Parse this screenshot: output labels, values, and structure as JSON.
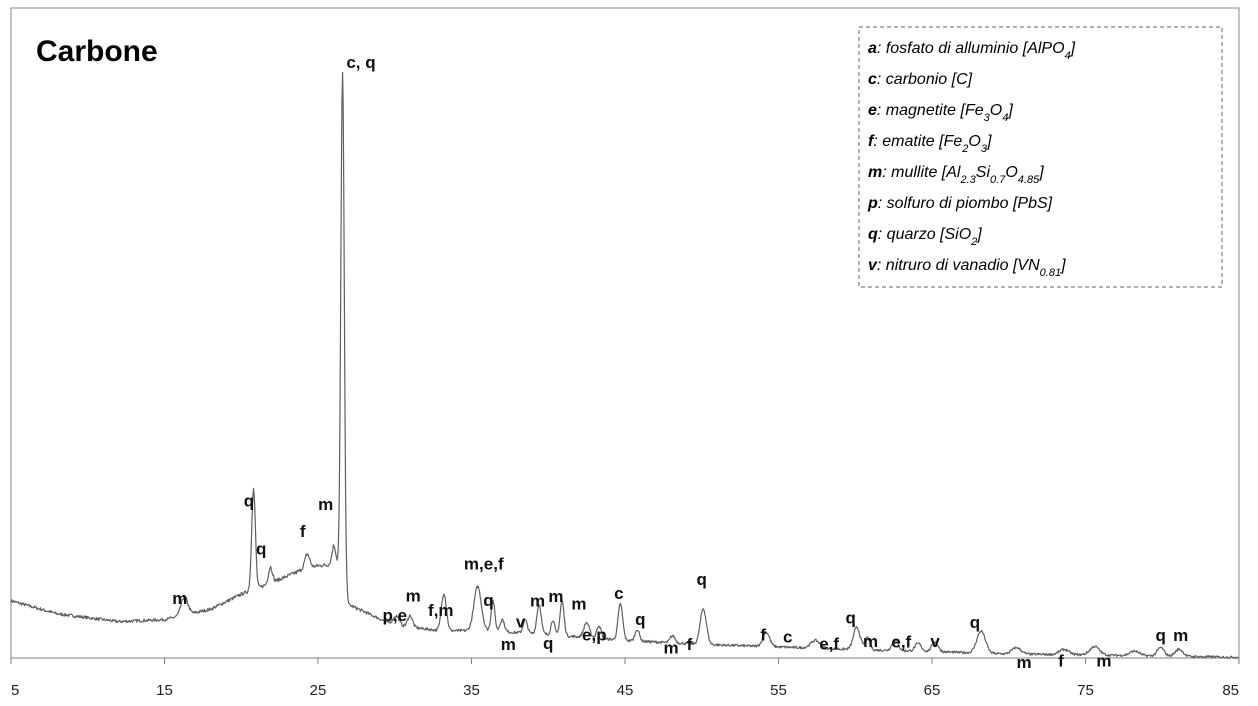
{
  "chart_data": {
    "type": "line",
    "title": "Carbone",
    "xlim": [
      5,
      85
    ],
    "x_ticks": [
      5,
      15,
      25,
      35,
      45,
      55,
      65,
      75,
      85
    ],
    "ylim": [
      0,
      100
    ],
    "grid": false,
    "legend_position": "top-right",
    "line_color": "#5f5f5f",
    "baseline": [
      [
        5,
        8.8
      ],
      [
        8,
        6.8
      ],
      [
        12,
        5.6
      ],
      [
        15,
        5.9
      ],
      [
        18,
        7.5
      ],
      [
        20,
        9.8
      ],
      [
        22,
        11.6
      ],
      [
        24,
        13.6
      ],
      [
        25,
        14.2
      ],
      [
        26,
        14.4
      ],
      [
        26.6,
        13.0
      ],
      [
        27,
        8.2
      ],
      [
        30,
        5.0
      ],
      [
        33,
        4.2
      ],
      [
        36,
        4.2
      ],
      [
        40,
        3.6
      ],
      [
        45,
        2.7
      ],
      [
        50,
        2.1
      ],
      [
        55,
        1.7
      ],
      [
        60,
        1.3
      ],
      [
        65,
        1.0
      ],
      [
        70,
        0.6
      ],
      [
        75,
        0.5
      ],
      [
        80,
        0.3
      ],
      [
        85,
        0.1
      ]
    ],
    "peaks": [
      {
        "x": 16.3,
        "h": 2.8,
        "w": 0.22
      },
      {
        "x": 20.8,
        "h": 15.5,
        "w": 0.12
      },
      {
        "x": 21.9,
        "h": 2.5,
        "w": 0.13
      },
      {
        "x": 24.3,
        "h": 2.2,
        "w": 0.16
      },
      {
        "x": 26.05,
        "h": 3.0,
        "w": 0.13
      },
      {
        "x": 26.6,
        "h": 77.0,
        "w": 0.11
      },
      {
        "x": 30.1,
        "h": 1.5,
        "w": 0.2
      },
      {
        "x": 31.0,
        "h": 1.8,
        "w": 0.16
      },
      {
        "x": 33.2,
        "h": 5.8,
        "w": 0.16
      },
      {
        "x": 35.4,
        "h": 6.8,
        "w": 0.24
      },
      {
        "x": 36.4,
        "h": 4.7,
        "w": 0.12
      },
      {
        "x": 37.0,
        "h": 1.9,
        "w": 0.14
      },
      {
        "x": 38.5,
        "h": 2.0,
        "w": 0.14
      },
      {
        "x": 39.4,
        "h": 4.6,
        "w": 0.14
      },
      {
        "x": 40.3,
        "h": 2.3,
        "w": 0.12
      },
      {
        "x": 40.9,
        "h": 5.3,
        "w": 0.13
      },
      {
        "x": 42.5,
        "h": 2.3,
        "w": 0.18
      },
      {
        "x": 43.3,
        "h": 2.0,
        "w": 0.14
      },
      {
        "x": 44.7,
        "h": 5.6,
        "w": 0.15
      },
      {
        "x": 45.8,
        "h": 1.8,
        "w": 0.14
      },
      {
        "x": 48.1,
        "h": 1.1,
        "w": 0.16
      },
      {
        "x": 50.1,
        "h": 5.5,
        "w": 0.2
      },
      {
        "x": 54.2,
        "h": 2.2,
        "w": 0.22
      },
      {
        "x": 57.4,
        "h": 1.2,
        "w": 0.3
      },
      {
        "x": 60.1,
        "h": 3.4,
        "w": 0.22
      },
      {
        "x": 60.8,
        "h": 1.8,
        "w": 0.16
      },
      {
        "x": 62.6,
        "h": 1.6,
        "w": 0.2
      },
      {
        "x": 64.1,
        "h": 1.2,
        "w": 0.2
      },
      {
        "x": 65.2,
        "h": 1.5,
        "w": 0.2
      },
      {
        "x": 68.2,
        "h": 3.4,
        "w": 0.28
      },
      {
        "x": 70.5,
        "h": 1.0,
        "w": 0.3
      },
      {
        "x": 73.6,
        "h": 0.8,
        "w": 0.3
      },
      {
        "x": 75.6,
        "h": 1.3,
        "w": 0.3
      },
      {
        "x": 78.2,
        "h": 0.7,
        "w": 0.3
      },
      {
        "x": 79.9,
        "h": 1.3,
        "w": 0.22
      },
      {
        "x": 81.1,
        "h": 1.1,
        "w": 0.25
      }
    ],
    "annotations": [
      {
        "text": "m",
        "x": 16.0,
        "y": 8.3
      },
      {
        "text": "q",
        "x": 20.5,
        "y": 23.3
      },
      {
        "text": "q",
        "x": 21.3,
        "y": 15.9
      },
      {
        "text": "f",
        "x": 24.0,
        "y": 18.6
      },
      {
        "text": "m",
        "x": 25.5,
        "y": 22.8
      },
      {
        "text": "c, q",
        "x": 27.8,
        "y": 90.8
      },
      {
        "text": "p,e",
        "x": 30.0,
        "y": 5.7
      },
      {
        "text": "m",
        "x": 31.2,
        "y": 8.7
      },
      {
        "text": "f,m",
        "x": 33.0,
        "y": 6.5
      },
      {
        "text": "m,e,f",
        "x": 35.8,
        "y": 13.6
      },
      {
        "text": "q",
        "x": 36.1,
        "y": 8.0
      },
      {
        "text": "m",
        "x": 37.4,
        "y": 1.2
      },
      {
        "text": "v",
        "x": 38.2,
        "y": 4.7
      },
      {
        "text": "m",
        "x": 39.3,
        "y": 7.9
      },
      {
        "text": "m",
        "x": 40.5,
        "y": 8.6
      },
      {
        "text": "q",
        "x": 40.0,
        "y": 1.4
      },
      {
        "text": "m",
        "x": 42.0,
        "y": 7.5
      },
      {
        "text": "e,p",
        "x": 43.0,
        "y": 2.7
      },
      {
        "text": "c",
        "x": 44.6,
        "y": 9.1
      },
      {
        "text": "q",
        "x": 46.0,
        "y": 5.1
      },
      {
        "text": "m",
        "x": 48.0,
        "y": 0.7
      },
      {
        "text": "f",
        "x": 49.2,
        "y": 1.2
      },
      {
        "text": "q",
        "x": 50.0,
        "y": 11.2
      },
      {
        "text": "f",
        "x": 54.0,
        "y": 2.7
      },
      {
        "text": "c",
        "x": 55.6,
        "y": 2.4
      },
      {
        "text": "e,f",
        "x": 58.3,
        "y": 1.3
      },
      {
        "text": "q",
        "x": 59.7,
        "y": 5.3
      },
      {
        "text": "m",
        "x": 61.0,
        "y": 1.7
      },
      {
        "text": "e,f",
        "x": 63.0,
        "y": 1.6
      },
      {
        "text": "v",
        "x": 65.2,
        "y": 1.7
      },
      {
        "text": "q",
        "x": 67.8,
        "y": 4.6
      },
      {
        "text": "m",
        "x": 71.0,
        "y": -1.5
      },
      {
        "text": "f",
        "x": 73.4,
        "y": -1.3
      },
      {
        "text": "m",
        "x": 76.2,
        "y": -1.3
      },
      {
        "text": "q",
        "x": 79.9,
        "y": 2.6
      },
      {
        "text": "m",
        "x": 81.2,
        "y": 2.6
      }
    ]
  },
  "legend": {
    "entries": [
      {
        "key": "a",
        "text": ": fosfato di alluminio [AlPO",
        "sub": "4",
        "tail": "]"
      },
      {
        "key": "c",
        "text": ": carbonio [C]",
        "sub": "",
        "tail": ""
      },
      {
        "key": "e",
        "text": ":  magnetite [Fe",
        "sub": "3",
        "mid": "O",
        "sub2": "4",
        "tail": "]"
      },
      {
        "key": "f",
        "text": ":  ematite [Fe",
        "sub": "2",
        "mid": "O",
        "sub2": "3",
        "tail": "]"
      },
      {
        "key": "m",
        "text": ": mullite [Al",
        "sub": "2.3",
        "mid": "Si",
        "sub2": "0.7",
        "mid2": "O",
        "sub3": "4.85",
        "tail": "]"
      },
      {
        "key": "p",
        "text": ":  solfuro di piombo  [PbS]",
        "sub": "",
        "tail": ""
      },
      {
        "key": "q",
        "text": ": quarzo [SiO",
        "sub": "2",
        "tail": "]"
      },
      {
        "key": "v",
        "text": ": nitruro di vanadio [VN",
        "sub": "0.81",
        "tail": "]"
      }
    ]
  }
}
